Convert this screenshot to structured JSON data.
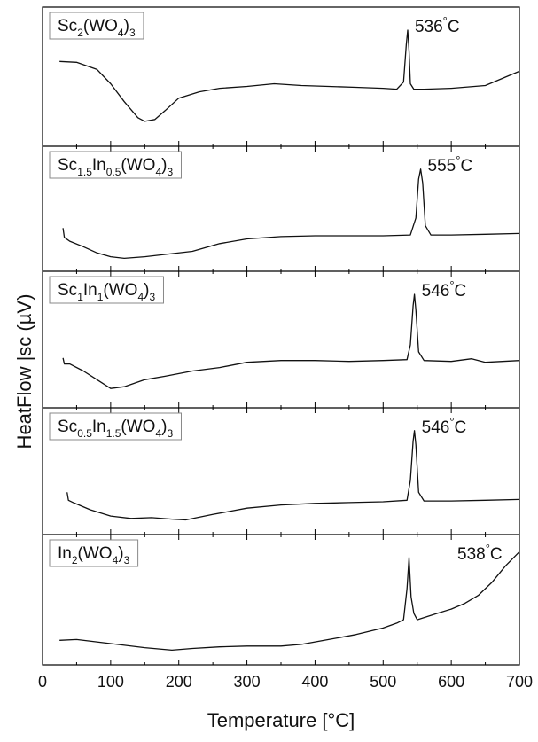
{
  "chart_data": {
    "type": "line",
    "xlabel": "Temperature [°C]",
    "ylabel": "HeatFlow |sc (µV)",
    "xlim": [
      0,
      700
    ],
    "x_ticks": [
      "0",
      "100",
      "200",
      "300",
      "400",
      "500",
      "600",
      "700"
    ],
    "panels": [
      {
        "label": "Sc2(WO4)3",
        "label_parts": [
          {
            "t": "Sc"
          },
          {
            "t": "2",
            "sub": true
          },
          {
            "t": "(WO"
          },
          {
            "t": "4",
            "sub": true
          },
          {
            "t": ")"
          },
          {
            "t": "3",
            "sub": true
          }
        ],
        "peak_label": "536°C",
        "series": {
          "x": [
            25,
            50,
            80,
            100,
            120,
            140,
            150,
            165,
            180,
            200,
            230,
            260,
            300,
            340,
            380,
            420,
            460,
            500,
            520,
            530,
            534,
            536,
            538,
            540,
            545,
            560,
            600,
            650,
            700
          ],
          "y": [
            0.83,
            0.82,
            0.74,
            0.58,
            0.38,
            0.2,
            0.16,
            0.18,
            0.28,
            0.42,
            0.49,
            0.53,
            0.55,
            0.58,
            0.56,
            0.55,
            0.54,
            0.53,
            0.52,
            0.6,
            1.02,
            1.18,
            0.95,
            0.58,
            0.52,
            0.52,
            0.53,
            0.56,
            0.72
          ]
        }
      },
      {
        "label": "Sc1.5In0.5(WO4)3",
        "label_parts": [
          {
            "t": "Sc"
          },
          {
            "t": "1.5",
            "sub": true
          },
          {
            "t": "In"
          },
          {
            "t": "0.5",
            "sub": true
          },
          {
            "t": "(WO"
          },
          {
            "t": "4",
            "sub": true
          },
          {
            "t": ")"
          },
          {
            "t": "3",
            "sub": true
          }
        ],
        "peak_label": "555°C",
        "series": {
          "x": [
            30,
            32,
            40,
            60,
            80,
            100,
            120,
            150,
            180,
            220,
            260,
            300,
            350,
            400,
            450,
            500,
            540,
            548,
            552,
            555,
            558,
            562,
            570,
            600,
            650,
            700
          ],
          "y": [
            0.42,
            0.3,
            0.25,
            0.18,
            0.1,
            0.05,
            0.03,
            0.05,
            0.08,
            0.12,
            0.22,
            0.28,
            0.31,
            0.32,
            0.32,
            0.32,
            0.33,
            0.55,
            1.05,
            1.18,
            1.0,
            0.45,
            0.33,
            0.33,
            0.34,
            0.35
          ]
        }
      },
      {
        "label": "Sc1In1(WO4)3",
        "label_parts": [
          {
            "t": "Sc"
          },
          {
            "t": "1",
            "sub": true
          },
          {
            "t": "In"
          },
          {
            "t": "1",
            "sub": true
          },
          {
            "t": "(WO"
          },
          {
            "t": "4",
            "sub": true
          },
          {
            "t": ")"
          },
          {
            "t": "3",
            "sub": true
          }
        ],
        "peak_label": "546°C",
        "series": {
          "x": [
            30,
            32,
            40,
            60,
            80,
            100,
            120,
            150,
            180,
            220,
            260,
            300,
            350,
            400,
            450,
            500,
            535,
            540,
            544,
            546,
            548,
            552,
            560,
            600,
            630,
            650,
            700
          ],
          "y": [
            0.45,
            0.38,
            0.38,
            0.3,
            0.2,
            0.1,
            0.12,
            0.2,
            0.24,
            0.3,
            0.34,
            0.4,
            0.42,
            0.42,
            0.41,
            0.42,
            0.43,
            0.6,
            1.05,
            1.18,
            1.0,
            0.52,
            0.42,
            0.41,
            0.44,
            0.4,
            0.42
          ]
        }
      },
      {
        "label": "Sc0.5In1.5(WO4)3",
        "label_parts": [
          {
            "t": "Sc"
          },
          {
            "t": "0.5",
            "sub": true
          },
          {
            "t": "In"
          },
          {
            "t": "1.5",
            "sub": true
          },
          {
            "t": "(WO"
          },
          {
            "t": "4",
            "sub": true
          },
          {
            "t": ")"
          },
          {
            "t": "3",
            "sub": true
          }
        ],
        "peak_label": "546°C",
        "series": {
          "x": [
            36,
            38,
            45,
            70,
            100,
            130,
            160,
            190,
            210,
            250,
            300,
            350,
            400,
            450,
            500,
            535,
            540,
            544,
            546,
            548,
            552,
            560,
            600,
            650,
            700
          ],
          "y": [
            0.4,
            0.3,
            0.27,
            0.18,
            0.1,
            0.07,
            0.08,
            0.06,
            0.05,
            0.12,
            0.2,
            0.24,
            0.26,
            0.27,
            0.28,
            0.3,
            0.55,
            1.05,
            1.18,
            1.0,
            0.4,
            0.29,
            0.29,
            0.3,
            0.31
          ]
        }
      },
      {
        "label": "In2(WO4)3",
        "label_parts": [
          {
            "t": "In"
          },
          {
            "t": "2",
            "sub": true
          },
          {
            "t": "(WO"
          },
          {
            "t": "4",
            "sub": true
          },
          {
            "t": ")"
          },
          {
            "t": "3",
            "sub": true
          }
        ],
        "peak_label": "538°C",
        "series": {
          "x": [
            25,
            50,
            100,
            150,
            190,
            220,
            260,
            300,
            350,
            380,
            420,
            460,
            500,
            520,
            530,
            535,
            538,
            541,
            545,
            550,
            580,
            600,
            620,
            640,
            660,
            680,
            700
          ],
          "y": [
            0.17,
            0.18,
            0.13,
            0.08,
            0.05,
            0.07,
            0.09,
            0.1,
            0.1,
            0.12,
            0.18,
            0.24,
            0.32,
            0.38,
            0.42,
            0.8,
            1.18,
            0.7,
            0.5,
            0.42,
            0.5,
            0.55,
            0.62,
            0.72,
            0.88,
            1.08,
            1.25
          ]
        }
      }
    ]
  }
}
